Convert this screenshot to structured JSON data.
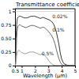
{
  "chart_data": {
    "type": "line",
    "title": "Transmittance coefficient",
    "x_label": "Wavelength (μm)",
    "xlim": [
      0.5,
      5.0
    ],
    "ylim": [
      0.0,
      1.05
    ],
    "xticks": [
      0.5,
      1,
      2,
      3,
      4,
      5
    ],
    "yticks": [
      0,
      0.25,
      {
        "value": 0.5,
        "label": "0.50"
      },
      0.75,
      1
    ],
    "series": [
      {
        "color": "#333333",
        "x": [
          0.5,
          0.52,
          0.54,
          0.56,
          0.58,
          0.6,
          0.62,
          0.65,
          0.68,
          0.72,
          0.76,
          0.8,
          0.85,
          0.9,
          0.95,
          1.0,
          1.1,
          1.2,
          1.3,
          1.4,
          1.5,
          1.6,
          1.7,
          1.8,
          1.9,
          2.0,
          2.1,
          2.2,
          2.3,
          2.4,
          2.5,
          2.6,
          2.7,
          2.8,
          2.9,
          3.0,
          3.1,
          3.2,
          3.3,
          3.4,
          3.5,
          3.6,
          3.7,
          3.8,
          3.9,
          4.0,
          4.1,
          4.2,
          4.4,
          4.6,
          4.8,
          5.0
        ],
        "values": [
          0.0,
          0.05,
          0.15,
          0.3,
          0.5,
          0.65,
          0.75,
          0.83,
          0.87,
          0.89,
          0.9,
          0.91,
          0.91,
          0.91,
          0.91,
          0.9,
          0.89,
          0.88,
          0.88,
          0.88,
          0.89,
          0.9,
          0.91,
          0.91,
          0.91,
          0.91,
          0.9,
          0.89,
          0.88,
          0.87,
          0.88,
          0.89,
          0.88,
          0.87,
          0.86,
          0.85,
          0.84,
          0.82,
          0.8,
          0.76,
          0.7,
          0.62,
          0.5,
          0.38,
          0.22,
          0.12,
          0.06,
          0.03,
          0.01,
          0.0,
          0.0,
          0.0
        ]
      },
      {
        "color": "#666666",
        "x": [
          0.5,
          0.52,
          0.54,
          0.56,
          0.58,
          0.6,
          0.62,
          0.65,
          0.68,
          0.72,
          0.76,
          0.8,
          0.85,
          0.9,
          0.95,
          1.0,
          1.1,
          1.2,
          1.3,
          1.4,
          1.5,
          1.6,
          1.7,
          1.8,
          1.9,
          2.0,
          2.1,
          2.2,
          2.3,
          2.4,
          2.5,
          2.6,
          2.7,
          2.8,
          2.9,
          3.0,
          3.1,
          3.2,
          3.3,
          3.4,
          3.5,
          3.6,
          3.7,
          3.8,
          3.9,
          4.0,
          4.1,
          4.2,
          4.4,
          4.6,
          4.8,
          5.0
        ],
        "values": [
          0.0,
          0.02,
          0.06,
          0.12,
          0.22,
          0.35,
          0.5,
          0.62,
          0.68,
          0.72,
          0.74,
          0.75,
          0.75,
          0.75,
          0.74,
          0.73,
          0.72,
          0.71,
          0.7,
          0.71,
          0.72,
          0.73,
          0.74,
          0.74,
          0.74,
          0.73,
          0.72,
          0.71,
          0.7,
          0.69,
          0.7,
          0.71,
          0.7,
          0.68,
          0.66,
          0.63,
          0.6,
          0.57,
          0.53,
          0.47,
          0.4,
          0.3,
          0.2,
          0.12,
          0.06,
          0.02,
          0.01,
          0.0,
          0.0,
          0.0,
          0.0,
          0.0
        ]
      },
      {
        "color": "#999999",
        "x": [
          0.5,
          0.52,
          0.54,
          0.56,
          0.58,
          0.6,
          0.62,
          0.65,
          0.68,
          0.72,
          0.76,
          0.8,
          0.85,
          0.9,
          0.95,
          1.0,
          1.1,
          1.2,
          1.3,
          1.4,
          1.5,
          1.6,
          1.7,
          1.8,
          1.9,
          2.0,
          2.1,
          2.2,
          2.3,
          2.4,
          2.5,
          2.6,
          2.7,
          2.8,
          2.9,
          3.0,
          3.1,
          3.2,
          3.3,
          3.4,
          3.5,
          3.6,
          3.7,
          3.8,
          3.9,
          4.0,
          4.2,
          4.4,
          4.6,
          4.8,
          5.0
        ],
        "values": [
          0.0,
          0.0,
          0.01,
          0.03,
          0.07,
          0.12,
          0.18,
          0.22,
          0.25,
          0.27,
          0.28,
          0.28,
          0.27,
          0.26,
          0.25,
          0.24,
          0.23,
          0.22,
          0.22,
          0.23,
          0.24,
          0.25,
          0.25,
          0.25,
          0.25,
          0.24,
          0.23,
          0.22,
          0.21,
          0.2,
          0.21,
          0.21,
          0.19,
          0.17,
          0.14,
          0.1,
          0.07,
          0.04,
          0.02,
          0.01,
          0.0,
          0.0,
          0.0,
          0.0,
          0.0,
          0.0,
          0.0,
          0.0,
          0.0,
          0.0,
          0.0
        ]
      }
    ],
    "annotations": [
      {
        "text": "0.02%",
        "x": 3.3,
        "y": 0.87
      },
      {
        "text": "0.1%",
        "x": 3.3,
        "y": 0.62
      },
      {
        "text": "0.5%",
        "x": 2.5,
        "y": 0.19
      }
    ],
    "reference_line": {
      "y": 1.0,
      "color": "#bbbbbb"
    }
  }
}
